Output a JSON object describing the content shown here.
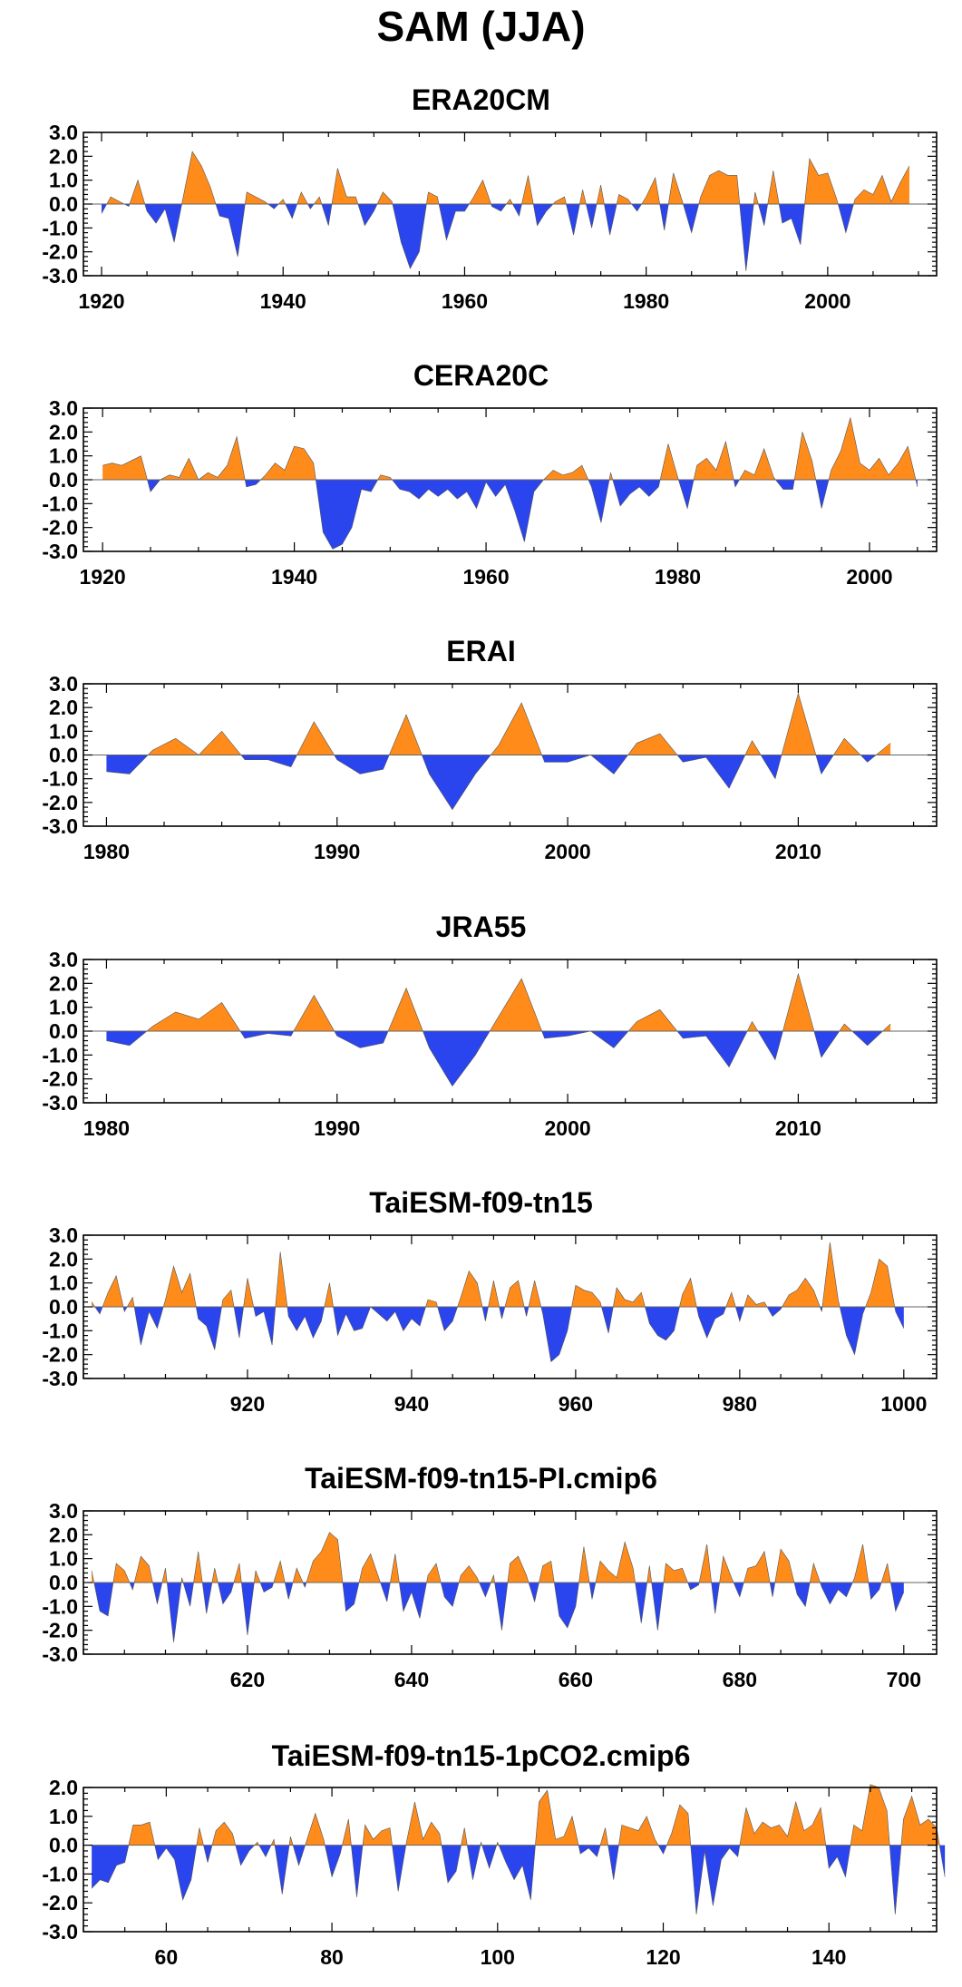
{
  "title": "SAM (JJA)",
  "colors": {
    "positive": "#ff8c1a",
    "negative": "#2a44ee",
    "axis": "#000000"
  },
  "chart_data": [
    {
      "type": "area",
      "title": "ERA20CM",
      "ylim": [
        -3.0,
        3.0
      ],
      "yticks": [
        "3.0",
        "2.0",
        "1.0",
        "0.0",
        "-1.0",
        "-2.0",
        "-3.0"
      ],
      "xlim": [
        1918,
        2012
      ],
      "xticks": [
        1920,
        1940,
        1960,
        1980,
        2000
      ],
      "x_start": 1920,
      "values": [
        -0.4,
        0.3,
        0.1,
        -0.1,
        1.0,
        -0.3,
        -0.8,
        -0.2,
        -1.6,
        0.3,
        2.2,
        1.6,
        0.7,
        -0.5,
        -0.6,
        -2.2,
        0.5,
        0.3,
        0.1,
        -0.2,
        0.2,
        -0.6,
        0.5,
        -0.2,
        0.3,
        -0.9,
        1.5,
        0.3,
        0.3,
        -0.9,
        -0.3,
        0.5,
        0.1,
        -1.6,
        -2.7,
        -2.0,
        0.5,
        0.3,
        -1.5,
        -0.3,
        -0.3,
        0.3,
        1.0,
        -0.1,
        -0.3,
        0.2,
        -0.5,
        1.2,
        -0.9,
        -0.3,
        0.1,
        0.3,
        -1.3,
        0.6,
        -1.0,
        0.8,
        -1.3,
        0.4,
        0.2,
        -0.3,
        0.3,
        1.1,
        -1.1,
        1.3,
        0.1,
        -1.2,
        0.3,
        1.2,
        1.4,
        1.2,
        1.2,
        -2.8,
        0.5,
        -0.9,
        1.4,
        -0.8,
        -0.6,
        -1.7,
        1.9,
        1.2,
        1.3,
        0.2,
        -1.2,
        0.2,
        0.6,
        0.4,
        1.2,
        0.1,
        0.9,
        1.6
      ]
    },
    {
      "type": "area",
      "title": "CERA20C",
      "ylim": [
        -3.0,
        3.0
      ],
      "yticks": [
        "3.0",
        "2.0",
        "1.0",
        "0.0",
        "-1.0",
        "-2.0",
        "-3.0"
      ],
      "xlim": [
        1918,
        2007
      ],
      "xticks": [
        1920,
        1940,
        1960,
        1980,
        2000
      ],
      "x_start": 1920,
      "values": [
        0.6,
        0.7,
        0.6,
        0.8,
        1.0,
        -0.5,
        0.0,
        0.2,
        0.1,
        0.9,
        0.0,
        0.3,
        0.1,
        0.6,
        1.8,
        -0.3,
        -0.2,
        0.2,
        0.7,
        0.4,
        1.4,
        1.3,
        0.7,
        -2.2,
        -2.9,
        -2.7,
        -2.0,
        -0.4,
        -0.5,
        0.2,
        0.1,
        -0.4,
        -0.5,
        -0.8,
        -0.4,
        -0.7,
        -0.4,
        -0.8,
        -0.5,
        -1.2,
        -0.1,
        -0.7,
        -0.2,
        -1.3,
        -2.6,
        -0.5,
        0.0,
        0.4,
        0.2,
        0.3,
        0.6,
        -0.3,
        -1.8,
        0.3,
        -1.1,
        -0.6,
        -0.3,
        -0.7,
        -0.3,
        1.5,
        0.1,
        -1.2,
        0.6,
        0.9,
        0.4,
        1.6,
        -0.3,
        0.4,
        0.2,
        1.3,
        0.1,
        -0.4,
        -0.4,
        2.0,
        0.8,
        -1.2,
        0.4,
        1.2,
        2.6,
        0.7,
        0.4,
        0.9,
        0.2,
        0.7,
        1.4,
        -0.3
      ]
    },
    {
      "type": "area",
      "title": "ERAI",
      "ylim": [
        -3.0,
        3.0
      ],
      "yticks": [
        "3.0",
        "2.0",
        "1.0",
        "0.0",
        "-1.0",
        "-2.0",
        "-3.0"
      ],
      "xlim": [
        1979,
        2016
      ],
      "xticks": [
        1980,
        1990,
        2000,
        2010
      ],
      "x_start": 1980,
      "values": [
        -0.7,
        -0.8,
        0.2,
        0.7,
        0.0,
        1.0,
        -0.2,
        -0.2,
        -0.5,
        1.4,
        -0.2,
        -0.8,
        -0.6,
        1.7,
        -0.8,
        -2.3,
        -0.8,
        0.4,
        2.2,
        -0.3,
        -0.3,
        0.0,
        -0.8,
        0.5,
        0.9,
        -0.3,
        -0.1,
        -1.4,
        0.6,
        -1.0,
        2.6,
        -0.8,
        0.7,
        -0.3,
        0.5
      ]
    },
    {
      "type": "area",
      "title": "JRA55",
      "ylim": [
        -3.0,
        3.0
      ],
      "yticks": [
        "3.0",
        "2.0",
        "1.0",
        "0.0",
        "-1.0",
        "-2.0",
        "-3.0"
      ],
      "xlim": [
        1979,
        2016
      ],
      "xticks": [
        1980,
        1990,
        2000,
        2010
      ],
      "x_start": 1980,
      "values": [
        -0.4,
        -0.6,
        0.2,
        0.8,
        0.5,
        1.2,
        -0.3,
        -0.1,
        -0.2,
        1.5,
        -0.2,
        -0.7,
        -0.5,
        1.8,
        -0.7,
        -2.3,
        -1.0,
        0.6,
        2.2,
        -0.3,
        -0.2,
        0.0,
        -0.7,
        0.4,
        0.9,
        -0.3,
        -0.2,
        -1.5,
        0.4,
        -1.2,
        2.4,
        -1.1,
        0.3,
        -0.6,
        0.3
      ]
    },
    {
      "type": "area",
      "title": "TaiESM-f09-tn15",
      "ylim": [
        -3.0,
        3.0
      ],
      "yticks": [
        "3.0",
        "2.0",
        "1.0",
        "0.0",
        "-1.0",
        "-2.0",
        "-3.0"
      ],
      "xlim": [
        900,
        1004
      ],
      "xticks": [
        920,
        940,
        960,
        980,
        1000
      ],
      "x_start": 901,
      "values": [
        0.2,
        -0.3,
        0.6,
        1.3,
        -0.2,
        0.4,
        -1.6,
        -0.2,
        -0.9,
        0.3,
        1.7,
        0.6,
        1.4,
        -0.5,
        -0.8,
        -1.8,
        0.3,
        0.7,
        -1.3,
        1.2,
        -0.4,
        -0.2,
        -1.6,
        2.3,
        -0.4,
        -1.0,
        -0.4,
        -1.3,
        -0.6,
        1.0,
        -1.2,
        -0.3,
        -1.0,
        -0.9,
        0.0,
        -0.3,
        -0.6,
        -0.2,
        -1.0,
        -0.5,
        -0.8,
        0.3,
        0.2,
        -1.0,
        -0.6,
        0.4,
        1.5,
        1.0,
        -0.6,
        1.1,
        -0.5,
        0.8,
        1.1,
        -0.4,
        1.1,
        -0.3,
        -2.3,
        -2.0,
        -1.0,
        0.9,
        0.7,
        0.6,
        0.2,
        -1.1,
        0.8,
        0.3,
        0.2,
        0.6,
        -0.7,
        -1.2,
        -1.4,
        -1.0,
        0.5,
        1.2,
        -0.4,
        -1.3,
        -0.5,
        -0.3,
        0.6,
        -0.6,
        0.5,
        0.1,
        0.2,
        -0.4,
        -0.1,
        0.5,
        0.7,
        1.2,
        0.7,
        -0.2,
        2.7,
        0.3,
        -1.2,
        -2.0,
        -0.3,
        0.6,
        2.0,
        1.7,
        -0.2,
        -0.9
      ]
    },
    {
      "type": "area",
      "title": "TaiESM-f09-tn15-PI.cmip6",
      "ylim": [
        -3.0,
        3.0
      ],
      "yticks": [
        "3.0",
        "2.0",
        "1.0",
        "0.0",
        "-1.0",
        "-2.0",
        "-3.0"
      ],
      "xlim": [
        600,
        704
      ],
      "xticks": [
        620,
        640,
        660,
        680,
        700
      ],
      "x_start": 601,
      "values": [
        0.5,
        -1.2,
        -1.4,
        0.8,
        0.5,
        -0.3,
        1.1,
        0.7,
        -0.9,
        0.6,
        -2.5,
        0.2,
        -1.0,
        1.3,
        -1.3,
        0.6,
        -0.9,
        -0.4,
        0.8,
        -2.2,
        0.5,
        -0.4,
        -0.2,
        0.9,
        -0.7,
        0.6,
        -0.2,
        0.9,
        1.3,
        2.1,
        1.8,
        -1.2,
        -0.9,
        0.6,
        1.2,
        0.2,
        -0.8,
        1.2,
        -1.2,
        -0.4,
        -1.5,
        0.3,
        0.8,
        -0.6,
        -1.0,
        0.3,
        0.7,
        0.2,
        -0.6,
        0.3,
        -2.0,
        0.8,
        1.1,
        0.3,
        -0.8,
        0.7,
        0.9,
        -1.4,
        -1.9,
        -1.0,
        1.5,
        -0.7,
        0.9,
        0.5,
        0.2,
        1.7,
        0.6,
        -1.7,
        0.7,
        -2.0,
        0.8,
        0.5,
        0.6,
        -0.3,
        -0.1,
        1.6,
        -1.3,
        1.1,
        0.2,
        -0.6,
        0.6,
        0.7,
        1.3,
        -0.6,
        1.4,
        0.9,
        -0.5,
        -1.0,
        0.8,
        -0.2,
        -0.9,
        -0.3,
        -0.6,
        0.2,
        1.6,
        -0.7,
        -0.3,
        0.8,
        -1.2,
        -0.4
      ]
    },
    {
      "type": "area",
      "title": "TaiESM-f09-tn15-1pCO2.cmip6",
      "ylim": [
        -3.0,
        2.0
      ],
      "yticks": [
        "2.0",
        "1.0",
        "0.0",
        "-1.0",
        "-2.0",
        "-3.0"
      ],
      "xlim": [
        50,
        153
      ],
      "xticks": [
        60,
        80,
        100,
        120,
        140
      ],
      "x_start": 51,
      "values": [
        -1.5,
        -1.2,
        -1.3,
        -0.7,
        -0.6,
        0.7,
        0.7,
        0.8,
        -0.5,
        -0.1,
        -0.5,
        -1.9,
        -1.2,
        0.6,
        -0.6,
        0.5,
        0.8,
        0.4,
        -0.7,
        -0.2,
        0.1,
        -0.4,
        0.2,
        -1.7,
        0.3,
        -0.7,
        0.2,
        1.1,
        0.2,
        -1.1,
        -0.3,
        0.9,
        -1.8,
        0.7,
        0.2,
        0.5,
        0.6,
        -1.6,
        0.1,
        1.5,
        0.2,
        0.8,
        0.4,
        -1.3,
        -0.9,
        0.6,
        -1.2,
        0.1,
        -0.8,
        0.1,
        -0.6,
        -1.2,
        -0.7,
        -1.9,
        1.5,
        1.9,
        0.2,
        0.3,
        1.0,
        -0.3,
        -0.1,
        -0.4,
        0.6,
        -1.2,
        0.7,
        0.6,
        0.5,
        1.0,
        0.2,
        -0.3,
        0.4,
        1.4,
        1.1,
        -2.4,
        -0.2,
        -2.1,
        -0.5,
        -0.1,
        -0.4,
        1.3,
        0.4,
        0.8,
        0.6,
        0.7,
        0.3,
        1.5,
        0.5,
        0.7,
        1.3,
        -0.8,
        -0.4,
        -1.1,
        0.7,
        0.5,
        2.1,
        2.0,
        1.2,
        -2.4,
        0.9,
        1.7,
        0.7,
        0.9,
        0.6,
        -1.1
      ]
    }
  ]
}
